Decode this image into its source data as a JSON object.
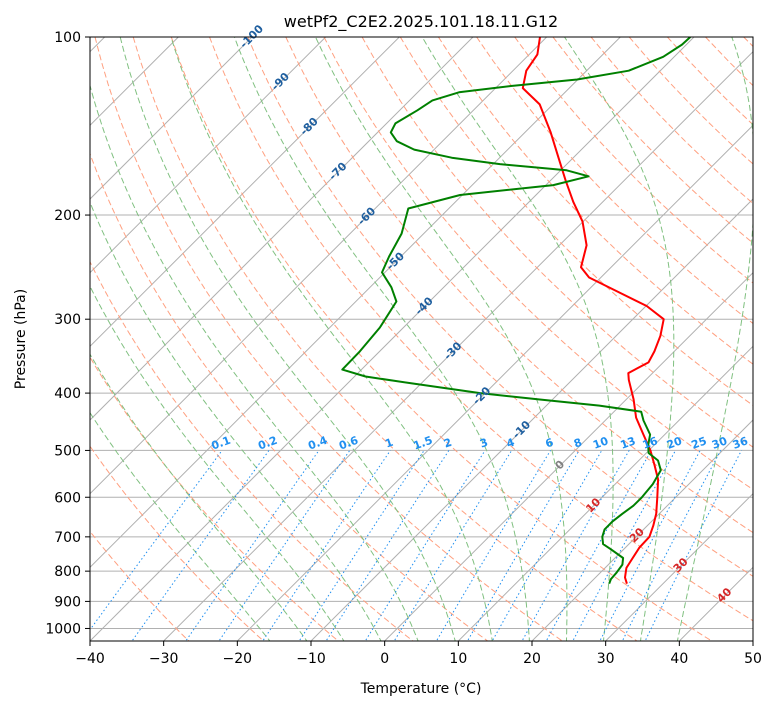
{
  "chart_data": {
    "type": "line",
    "subtype": "skew-t log-p diagram",
    "title": "wetPf2_C2E2.2025.101.18.11.G12",
    "xlabel": "Temperature (°C)",
    "ylabel": "Pressure (hPa)",
    "xlim": [
      -40,
      50
    ],
    "ylim": [
      1050,
      100
    ],
    "y_scale": "log",
    "grid": true,
    "x_ticks": [
      -40,
      -30,
      -20,
      -10,
      0,
      10,
      20,
      30,
      40,
      50
    ],
    "y_ticks": [
      100,
      200,
      300,
      400,
      500,
      600,
      700,
      800,
      900,
      1000
    ],
    "colors": {
      "temperature": "#ff0000",
      "dewpoint": "#008000",
      "isotherm_grid": "#b0b0b0",
      "dry_adiabat": "#ffa080",
      "moist_adiabat": "#80c080",
      "mixing_ratio": "#1f8ff0",
      "isotherm_label": "#1f5f9f",
      "adiabat_label": "#d62728"
    },
    "mixing_ratio_labels": [
      "0.1",
      "0.2",
      "0.4",
      "0.6",
      "1",
      "1.5",
      "2",
      "3",
      "4",
      "6",
      "8",
      "10",
      "13",
      "16",
      "20",
      "25",
      "30",
      "36"
    ],
    "mixing_ratio_values": [
      0.1,
      0.2,
      0.4,
      0.6,
      1,
      1.5,
      2,
      3,
      4,
      6,
      8,
      10,
      13,
      16,
      20,
      25,
      30,
      36
    ],
    "isotherm_labels": [
      "-100",
      "-90",
      "-80",
      "-70",
      "-60",
      "-50",
      "-40",
      "-30",
      "-20",
      "-10",
      "0",
      "10",
      "20",
      "30",
      "40"
    ],
    "isotherm_values": [
      -100,
      -90,
      -80,
      -70,
      -60,
      -50,
      -40,
      -30,
      -20,
      -10,
      0,
      10,
      20,
      30,
      40
    ],
    "series": [
      {
        "key": "temperature",
        "points": [
          {
            "p": 840,
            "t": 25.1
          },
          {
            "p": 820,
            "t": 24.0
          },
          {
            "p": 790,
            "t": 22.9
          },
          {
            "p": 760,
            "t": 22.4
          },
          {
            "p": 730,
            "t": 21.9
          },
          {
            "p": 700,
            "t": 21.8
          },
          {
            "p": 670,
            "t": 20.8
          },
          {
            "p": 640,
            "t": 19.6
          },
          {
            "p": 600,
            "t": 17.5
          },
          {
            "p": 560,
            "t": 15.2
          },
          {
            "p": 530,
            "t": 12.8
          },
          {
            "p": 500,
            "t": 10.2
          },
          {
            "p": 470,
            "t": 7.1
          },
          {
            "p": 440,
            "t": 3.8
          },
          {
            "p": 410,
            "t": 1.0
          },
          {
            "p": 380,
            "t": -2.3
          },
          {
            "p": 370,
            "t": -3.3
          },
          {
            "p": 355,
            "t": -2.0
          },
          {
            "p": 340,
            "t": -2.7
          },
          {
            "p": 320,
            "t": -4.0
          },
          {
            "p": 300,
            "t": -5.8
          },
          {
            "p": 285,
            "t": -9.9
          },
          {
            "p": 270,
            "t": -15.6
          },
          {
            "p": 255,
            "t": -21.6
          },
          {
            "p": 245,
            "t": -24.1
          },
          {
            "p": 225,
            "t": -26.3
          },
          {
            "p": 205,
            "t": -30.1
          },
          {
            "p": 190,
            "t": -34.0
          },
          {
            "p": 175,
            "t": -37.9
          },
          {
            "p": 160,
            "t": -42.0
          },
          {
            "p": 145,
            "t": -46.5
          },
          {
            "p": 130,
            "t": -51.8
          },
          {
            "p": 122,
            "t": -56.3
          },
          {
            "p": 114,
            "t": -58.2
          },
          {
            "p": 107,
            "t": -58.9
          },
          {
            "p": 100,
            "t": -60.9
          }
        ]
      },
      {
        "key": "dewpoint",
        "points": [
          {
            "p": 840,
            "t": 22.7
          },
          {
            "p": 825,
            "t": 22.3
          },
          {
            "p": 805,
            "t": 22.2
          },
          {
            "p": 780,
            "t": 21.9
          },
          {
            "p": 760,
            "t": 21.1
          },
          {
            "p": 735,
            "t": 18.3
          },
          {
            "p": 720,
            "t": 16.5
          },
          {
            "p": 700,
            "t": 15.4
          },
          {
            "p": 680,
            "t": 14.7
          },
          {
            "p": 660,
            "t": 14.7
          },
          {
            "p": 640,
            "t": 15.0
          },
          {
            "p": 620,
            "t": 15.4
          },
          {
            "p": 600,
            "t": 15.4
          },
          {
            "p": 570,
            "t": 15.1
          },
          {
            "p": 540,
            "t": 14.3
          },
          {
            "p": 520,
            "t": 12.6
          },
          {
            "p": 505,
            "t": 10.3
          },
          {
            "p": 490,
            "t": 9.2
          },
          {
            "p": 470,
            "t": 8.0
          },
          {
            "p": 445,
            "t": 5.2
          },
          {
            "p": 430,
            "t": 3.7
          },
          {
            "p": 420,
            "t": -2.8
          },
          {
            "p": 410,
            "t": -11.9
          },
          {
            "p": 400,
            "t": -20.7
          },
          {
            "p": 385,
            "t": -31.4
          },
          {
            "p": 375,
            "t": -38.5
          },
          {
            "p": 365,
            "t": -42.6
          },
          {
            "p": 340,
            "t": -42.7
          },
          {
            "p": 310,
            "t": -43.2
          },
          {
            "p": 280,
            "t": -44.5
          },
          {
            "p": 265,
            "t": -47.1
          },
          {
            "p": 250,
            "t": -50.4
          },
          {
            "p": 235,
            "t": -51.6
          },
          {
            "p": 215,
            "t": -53.0
          },
          {
            "p": 195,
            "t": -55.5
          },
          {
            "p": 185,
            "t": -50.3
          },
          {
            "p": 178,
            "t": -39.0
          },
          {
            "p": 172,
            "t": -35.4
          },
          {
            "p": 168,
            "t": -39.2
          },
          {
            "p": 164,
            "t": -49.1
          },
          {
            "p": 160,
            "t": -56.5
          },
          {
            "p": 155,
            "t": -62.7
          },
          {
            "p": 150,
            "t": -66.2
          },
          {
            "p": 145,
            "t": -68.2
          },
          {
            "p": 140,
            "t": -68.8
          },
          {
            "p": 133,
            "t": -67.6
          },
          {
            "p": 128,
            "t": -66.9
          },
          {
            "p": 124,
            "t": -64.4
          },
          {
            "p": 121,
            "t": -58.2
          },
          {
            "p": 118,
            "t": -50.1
          },
          {
            "p": 114,
            "t": -44.3
          },
          {
            "p": 108,
            "t": -41.5
          },
          {
            "p": 103,
            "t": -40.6
          },
          {
            "p": 100,
            "t": -40.5
          }
        ]
      }
    ]
  }
}
